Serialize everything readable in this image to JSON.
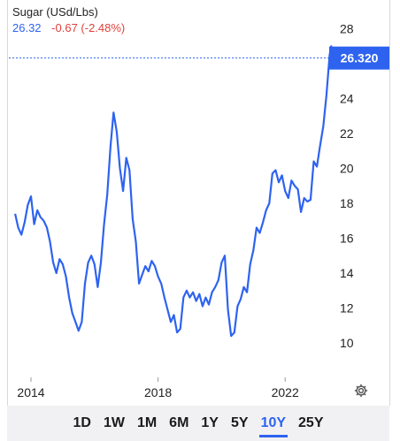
{
  "header": {
    "symbol": "Sugar (USd/Lbs)",
    "price": "26.32",
    "change": "-0.67 (-2.48%)"
  },
  "price_tag": "26.320",
  "ranges": [
    "1D",
    "1W",
    "1M",
    "6M",
    "1Y",
    "5Y",
    "10Y",
    "25Y"
  ],
  "active_range": "10Y",
  "colors": {
    "line": "#2e63f0",
    "negative": "#e0413a",
    "tag": "#2e63f0"
  },
  "icons": {
    "settings": "gear-icon"
  },
  "chart_data": {
    "type": "line",
    "title": "Sugar (USd/Lbs)",
    "xlabel": "",
    "ylabel": "",
    "x_ticks": [
      "2014",
      "2018",
      "2022"
    ],
    "y_ticks": [
      10,
      12,
      14,
      16,
      18,
      20,
      22,
      24,
      26,
      28
    ],
    "xlim": [
      2013.5,
      2023.55
    ],
    "ylim": [
      8,
      29
    ],
    "last_price": 26.32,
    "grid": false,
    "series": [
      {
        "x": [
          2013.5,
          2013.6,
          2013.7,
          2013.8,
          2013.9,
          2014.0,
          2014.1,
          2014.2,
          2014.3,
          2014.4,
          2014.5,
          2014.6,
          2014.7,
          2014.8,
          2014.9,
          2015.0,
          2015.1,
          2015.2,
          2015.3,
          2015.4,
          2015.5,
          2015.6,
          2015.7,
          2015.8,
          2015.9,
          2016.0,
          2016.1,
          2016.2,
          2016.3,
          2016.4,
          2016.5,
          2016.6,
          2016.7,
          2016.8,
          2016.9,
          2017.0,
          2017.1,
          2017.2,
          2017.3,
          2017.4,
          2017.5,
          2017.6,
          2017.7,
          2017.8,
          2017.9,
          2018.0,
          2018.1,
          2018.2,
          2018.3,
          2018.4,
          2018.5,
          2018.6,
          2018.7,
          2018.8,
          2018.9,
          2019.0,
          2019.1,
          2019.2,
          2019.3,
          2019.4,
          2019.5,
          2019.6,
          2019.7,
          2019.8,
          2019.9,
          2020.0,
          2020.1,
          2020.2,
          2020.3,
          2020.4,
          2020.5,
          2020.6,
          2020.7,
          2020.8,
          2020.9,
          2021.0,
          2021.1,
          2021.2,
          2021.3,
          2021.4,
          2021.5,
          2021.6,
          2021.7,
          2021.8,
          2021.9,
          2022.0,
          2022.1,
          2022.2,
          2022.3,
          2022.4,
          2022.5,
          2022.6,
          2022.7,
          2022.8,
          2022.9,
          2023.0,
          2023.1,
          2023.2,
          2023.3,
          2023.4,
          2023.45,
          2023.5
        ],
        "y": [
          17.4,
          16.6,
          16.2,
          16.9,
          17.9,
          18.4,
          16.8,
          17.6,
          17.2,
          17.0,
          16.6,
          15.8,
          14.6,
          14.0,
          14.8,
          14.5,
          13.8,
          12.6,
          11.7,
          11.2,
          10.7,
          11.2,
          13.4,
          14.6,
          15.0,
          14.5,
          13.2,
          14.6,
          16.8,
          18.5,
          21.2,
          23.2,
          22.1,
          20.0,
          18.7,
          20.6,
          19.9,
          17.1,
          15.8,
          13.4,
          13.9,
          14.4,
          14.1,
          14.7,
          14.4,
          13.8,
          13.4,
          12.6,
          11.9,
          11.2,
          11.6,
          10.6,
          10.8,
          12.6,
          13.0,
          12.6,
          12.9,
          12.4,
          12.8,
          12.1,
          12.6,
          12.2,
          12.9,
          13.2,
          13.6,
          14.6,
          15.0,
          11.9,
          10.4,
          10.6,
          12.1,
          12.5,
          13.2,
          12.9,
          14.5,
          15.3,
          16.6,
          16.3,
          16.9,
          17.6,
          18.0,
          19.7,
          19.9,
          19.2,
          19.6,
          18.7,
          18.3,
          19.3,
          19.0,
          18.8,
          17.5,
          18.3,
          18.1,
          18.2,
          20.4,
          20.1,
          21.3,
          22.4,
          24.2,
          26.5,
          27.0,
          26.32
        ]
      }
    ]
  }
}
